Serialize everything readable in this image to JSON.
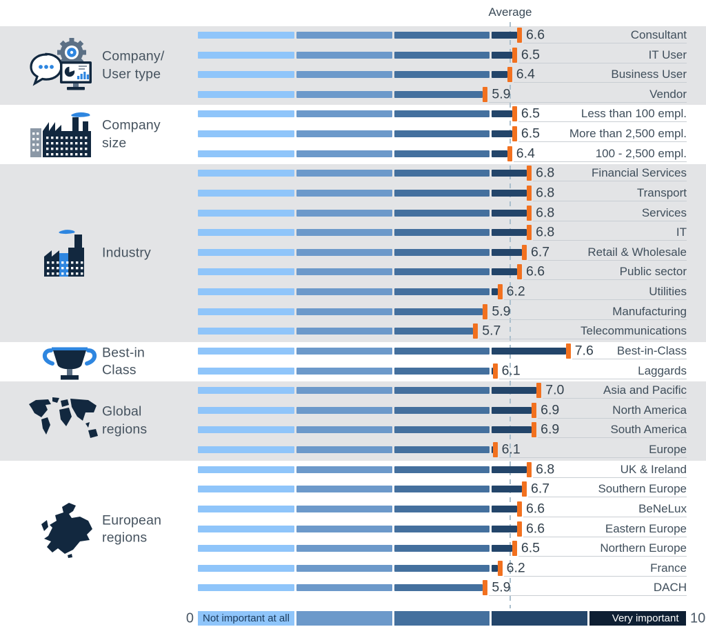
{
  "header": {
    "average_label": "Average"
  },
  "axis": {
    "min_label": "0",
    "max_label": "10",
    "min": 0,
    "max": 10
  },
  "legend": {
    "first_label": "Not important at all",
    "last_label": "Very important"
  },
  "colors": {
    "segments": [
      "#8fc5fa",
      "#6c99ca",
      "#44709e",
      "#23456a",
      "#0e1f33"
    ],
    "marker": "#f2711f",
    "band_gray": "#e3e4e6",
    "band_white": "#ffffff",
    "average_line": "#a9becc",
    "underline": "#c9ced3",
    "icon_navy": "#12283f",
    "icon_blue": "#2e86e0",
    "icon_slate": "#5c7085",
    "icon_gray": "#8b98a6"
  },
  "chart_data": {
    "type": "bar",
    "orientation": "horizontal",
    "title": "Average",
    "xlim": [
      0,
      10
    ],
    "x_ticks": [
      0,
      10
    ],
    "average_line_value": 6.4,
    "segment_bins": [
      [
        0,
        2
      ],
      [
        2,
        4
      ],
      [
        4,
        6
      ],
      [
        6,
        8
      ],
      [
        8,
        10
      ]
    ],
    "legend_position": "bottom",
    "groups": [
      {
        "label_lines": [
          "Company/",
          "User type"
        ],
        "icon": "gear-chat-monitor-icon",
        "rows": [
          {
            "label": "Consultant",
            "value": 6.6
          },
          {
            "label": "IT User",
            "value": 6.5
          },
          {
            "label": "Business User",
            "value": 6.4
          },
          {
            "label": "Vendor",
            "value": 5.9
          }
        ]
      },
      {
        "label_lines": [
          "Company",
          "size"
        ],
        "icon": "factory-icon",
        "rows": [
          {
            "label": "Less than 100 empl.",
            "value": 6.5
          },
          {
            "label": "More than 2,500 empl.",
            "value": 6.5
          },
          {
            "label": "100 - 2,500 empl.",
            "value": 6.4
          }
        ]
      },
      {
        "label_lines": [
          "Industry"
        ],
        "icon": "industry-icon",
        "rows": [
          {
            "label": "Financial Services",
            "value": 6.8
          },
          {
            "label": "Transport",
            "value": 6.8
          },
          {
            "label": "Services",
            "value": 6.8
          },
          {
            "label": "IT",
            "value": 6.8
          },
          {
            "label": "Retail & Wholesale",
            "value": 6.7
          },
          {
            "label": "Public sector",
            "value": 6.6
          },
          {
            "label": "Utilities",
            "value": 6.2
          },
          {
            "label": "Manufacturing",
            "value": 5.9
          },
          {
            "label": "Telecommunications",
            "value": 5.7
          }
        ]
      },
      {
        "label_lines": [
          "Best-in",
          "Class"
        ],
        "icon": "trophy-icon",
        "rows": [
          {
            "label": "Best-in-Class",
            "value": 7.6
          },
          {
            "label": "Laggards",
            "value": 6.1
          }
        ]
      },
      {
        "label_lines": [
          "Global",
          "regions"
        ],
        "icon": "world-map-icon",
        "rows": [
          {
            "label": "Asia and Pacific",
            "value": 7.0
          },
          {
            "label": "North America",
            "value": 6.9
          },
          {
            "label": "South America",
            "value": 6.9
          },
          {
            "label": "Europe",
            "value": 6.1
          }
        ]
      },
      {
        "label_lines": [
          "European",
          "regions"
        ],
        "icon": "europe-map-icon",
        "rows": [
          {
            "label": "UK & Ireland",
            "value": 6.8
          },
          {
            "label": "Southern Europe",
            "value": 6.7
          },
          {
            "label": "BeNeLux",
            "value": 6.6
          },
          {
            "label": "Eastern Europe",
            "value": 6.6
          },
          {
            "label": "Northern Europe",
            "value": 6.5
          },
          {
            "label": "France",
            "value": 6.2
          },
          {
            "label": "DACH",
            "value": 5.9
          }
        ]
      }
    ]
  }
}
